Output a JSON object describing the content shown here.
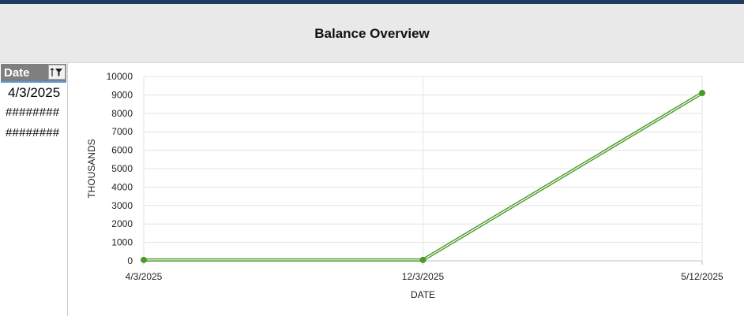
{
  "title": "Balance Overview",
  "table": {
    "header": "Date",
    "rows": [
      "4/3/2025",
      "########",
      "########"
    ]
  },
  "colors": {
    "series": "#4a9a2a",
    "header_bg": "#7f7f7f",
    "title_band": "#e9e9e9"
  },
  "icons": {
    "filter": "sort-filter-icon"
  },
  "chart_data": {
    "type": "line",
    "title": "",
    "xlabel": "DATE",
    "ylabel": "THOUSANDS",
    "x": [
      "4/3/2025",
      "12/3/2025",
      "5/12/2025"
    ],
    "series": [
      {
        "values": [
          50,
          50,
          9100
        ]
      }
    ],
    "ylim": [
      0,
      10000
    ],
    "yticks": [
      0,
      1000,
      2000,
      3000,
      4000,
      5000,
      6000,
      7000,
      8000,
      9000,
      10000
    ],
    "grid": true,
    "legend": "none"
  }
}
